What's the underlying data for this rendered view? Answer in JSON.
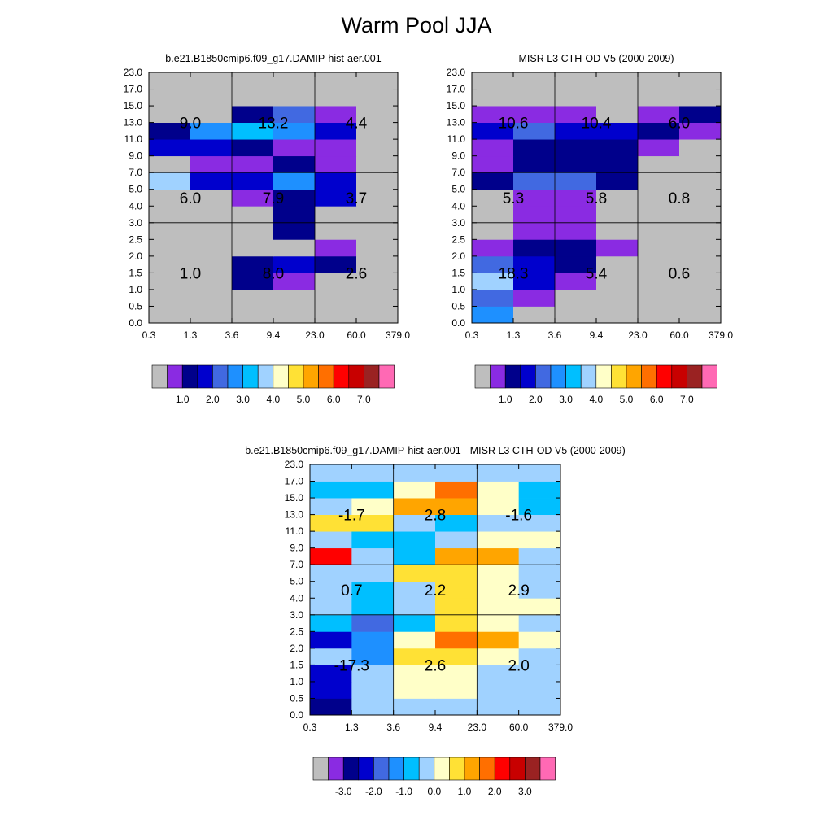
{
  "title": "Warm Pool JJA",
  "colors": {
    "missing": "#bebebe",
    "palette": [
      "#bebebe",
      "#8a2be2",
      "#00008b",
      "#0000cd",
      "#4169e1",
      "#1e90ff",
      "#00bfff",
      "#a0d2ff",
      "#ffffc8",
      "#ffe135",
      "#ffa500",
      "#ff6f00",
      "#ff0000",
      "#c80000",
      "#9a2222",
      "#ff69b4"
    ]
  },
  "chart_data": [
    {
      "type": "heatmap",
      "title": "b.e21.B1850cmip6.f09_g17.DAMIP-hist-aer.001",
      "x_ticks": [
        "0.3",
        "1.3",
        "3.6",
        "9.4",
        "23.0",
        "60.0",
        "379.0"
      ],
      "y_ticks": [
        "0.0",
        "0.5",
        "1.0",
        "1.5",
        "2.0",
        "2.5",
        "3.0",
        "4.0",
        "5.0",
        "7.0",
        "9.0",
        "11.0",
        "13.0",
        "15.0",
        "17.0",
        "23.0"
      ],
      "cells": [
        [
          0,
          0,
          0,
          0,
          0,
          0
        ],
        [
          0,
          0,
          0,
          0,
          0,
          0
        ],
        [
          0,
          0,
          2,
          1,
          0,
          0
        ],
        [
          0,
          0,
          2,
          3,
          2,
          0
        ],
        [
          0,
          0,
          0,
          0,
          1,
          0
        ],
        [
          0,
          0,
          0,
          2,
          0,
          0
        ],
        [
          0,
          0,
          0,
          2,
          0,
          0
        ],
        [
          0,
          0,
          1,
          2,
          3,
          0
        ],
        [
          7,
          3,
          3,
          5,
          3,
          0
        ],
        [
          0,
          1,
          1,
          2,
          1,
          0
        ],
        [
          3,
          3,
          2,
          1,
          1,
          0
        ],
        [
          2,
          5,
          6,
          5,
          3,
          0
        ],
        [
          0,
          0,
          2,
          4,
          1,
          0
        ],
        [
          0,
          0,
          0,
          0,
          0,
          0
        ],
        [
          0,
          0,
          0,
          0,
          0,
          0
        ]
      ],
      "box_labels": [
        {
          "text": "9.0",
          "col": 0,
          "row": 2
        },
        {
          "text": "13.2",
          "col": 1,
          "row": 2
        },
        {
          "text": "4.4",
          "col": 2,
          "row": 2
        },
        {
          "text": "6.0",
          "col": 0,
          "row": 1
        },
        {
          "text": "7.9",
          "col": 1,
          "row": 1
        },
        {
          "text": "3.7",
          "col": 2,
          "row": 1
        },
        {
          "text": "1.0",
          "col": 0,
          "row": 0
        },
        {
          "text": "8.0",
          "col": 1,
          "row": 0
        },
        {
          "text": "2.6",
          "col": 2,
          "row": 0
        }
      ],
      "colorbar_labels": [
        "1.0",
        "2.0",
        "3.0",
        "4.0",
        "5.0",
        "6.0",
        "7.0"
      ]
    },
    {
      "type": "heatmap",
      "title": "MISR L3 CTH-OD V5 (2000-2009)",
      "x_ticks": [
        "0.3",
        "1.3",
        "3.6",
        "9.4",
        "23.0",
        "60.0",
        "379.0"
      ],
      "y_ticks": [
        "0.0",
        "0.5",
        "1.0",
        "1.5",
        "2.0",
        "2.5",
        "3.0",
        "4.0",
        "5.0",
        "7.0",
        "9.0",
        "11.0",
        "13.0",
        "15.0",
        "17.0",
        "23.0"
      ],
      "cells": [
        [
          5,
          0,
          0,
          0,
          0,
          0
        ],
        [
          4,
          1,
          0,
          0,
          0,
          0
        ],
        [
          7,
          3,
          1,
          0,
          0,
          0
        ],
        [
          4,
          3,
          2,
          0,
          0,
          0
        ],
        [
          1,
          2,
          2,
          1,
          0,
          0
        ],
        [
          0,
          1,
          1,
          0,
          0,
          0
        ],
        [
          0,
          1,
          1,
          0,
          0,
          0
        ],
        [
          0,
          1,
          1,
          0,
          0,
          0
        ],
        [
          2,
          4,
          4,
          2,
          0,
          0
        ],
        [
          1,
          2,
          2,
          2,
          0,
          0
        ],
        [
          1,
          2,
          2,
          2,
          1,
          0
        ],
        [
          3,
          4,
          3,
          3,
          2,
          1
        ],
        [
          1,
          1,
          1,
          0,
          1,
          2
        ],
        [
          0,
          0,
          0,
          0,
          0,
          0
        ],
        [
          0,
          0,
          0,
          0,
          0,
          0
        ]
      ],
      "box_labels": [
        {
          "text": "10.6",
          "col": 0,
          "row": 2
        },
        {
          "text": "10.4",
          "col": 1,
          "row": 2
        },
        {
          "text": "6.0",
          "col": 2,
          "row": 2
        },
        {
          "text": "5.3",
          "col": 0,
          "row": 1
        },
        {
          "text": "5.8",
          "col": 1,
          "row": 1
        },
        {
          "text": "0.8",
          "col": 2,
          "row": 1
        },
        {
          "text": "18.3",
          "col": 0,
          "row": 0
        },
        {
          "text": "5.4",
          "col": 1,
          "row": 0
        },
        {
          "text": "0.6",
          "col": 2,
          "row": 0
        }
      ],
      "colorbar_labels": [
        "1.0",
        "2.0",
        "3.0",
        "4.0",
        "5.0",
        "6.0",
        "7.0"
      ]
    },
    {
      "type": "heatmap",
      "title": "b.e21.B1850cmip6.f09_g17.DAMIP-hist-aer.001 - MISR L3 CTH-OD V5 (2000-2009)",
      "x_ticks": [
        "0.3",
        "1.3",
        "3.6",
        "9.4",
        "23.0",
        "60.0",
        "379.0"
      ],
      "y_ticks": [
        "0.0",
        "0.5",
        "1.0",
        "1.5",
        "2.0",
        "2.5",
        "3.0",
        "4.0",
        "5.0",
        "7.0",
        "9.0",
        "11.0",
        "13.0",
        "15.0",
        "17.0",
        "23.0"
      ],
      "cells": [
        [
          2,
          7,
          7,
          7,
          7,
          7
        ],
        [
          3,
          7,
          8,
          8,
          7,
          7
        ],
        [
          3,
          7,
          8,
          8,
          7,
          7
        ],
        [
          7,
          5,
          9,
          9,
          8,
          7
        ],
        [
          3,
          5,
          8,
          11,
          10,
          8
        ],
        [
          6,
          4,
          6,
          9,
          8,
          7
        ],
        [
          7,
          6,
          7,
          9,
          8,
          8
        ],
        [
          7,
          6,
          7,
          9,
          8,
          7
        ],
        [
          7,
          7,
          9,
          9,
          8,
          7
        ],
        [
          12,
          7,
          6,
          10,
          10,
          7
        ],
        [
          7,
          6,
          6,
          7,
          8,
          8
        ],
        [
          9,
          9,
          7,
          6,
          7,
          7
        ],
        [
          7,
          8,
          10,
          10,
          8,
          6
        ],
        [
          6,
          6,
          8,
          11,
          8,
          6
        ],
        [
          7,
          7,
          7,
          7,
          7,
          7
        ]
      ],
      "box_labels": [
        {
          "text": "-1.7",
          "col": 0,
          "row": 2
        },
        {
          "text": "2.8",
          "col": 1,
          "row": 2
        },
        {
          "text": "-1.6",
          "col": 2,
          "row": 2
        },
        {
          "text": "0.7",
          "col": 0,
          "row": 1
        },
        {
          "text": "2.2",
          "col": 1,
          "row": 1
        },
        {
          "text": "2.9",
          "col": 2,
          "row": 1
        },
        {
          "text": "-17.3",
          "col": 0,
          "row": 0
        },
        {
          "text": "2.6",
          "col": 1,
          "row": 0
        },
        {
          "text": "2.0",
          "col": 2,
          "row": 0
        }
      ],
      "colorbar_labels": [
        "-3.0",
        "-2.0",
        "-1.0",
        "0.0",
        "1.0",
        "2.0",
        "3.0"
      ]
    }
  ]
}
